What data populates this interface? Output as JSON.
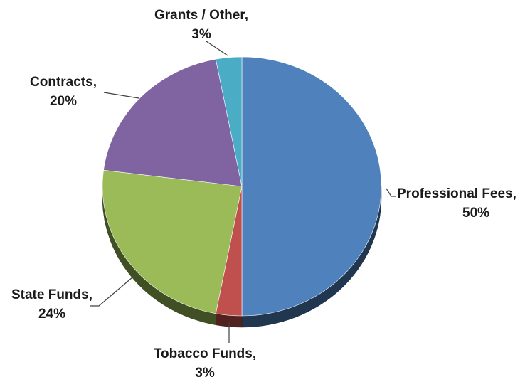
{
  "chart_data": {
    "type": "pie",
    "title": "",
    "slices": [
      {
        "label": "Professional Fees",
        "value": 50,
        "display": "50%",
        "color": "#4F81BD"
      },
      {
        "label": "Tobacco Funds",
        "value": 3,
        "display": "3%",
        "color": "#C0504D"
      },
      {
        "label": "State Funds",
        "value": 24,
        "display": "24%",
        "color": "#9BBB59"
      },
      {
        "label": "Contracts",
        "value": 20,
        "display": "20%",
        "color": "#8064A2"
      },
      {
        "label": "Grants / Other",
        "value": 3,
        "display": "3%",
        "color": "#4BACC6"
      }
    ],
    "start_angle_deg": 0,
    "direction": "clockwise",
    "legend": "none",
    "style": "3d-tilted"
  }
}
